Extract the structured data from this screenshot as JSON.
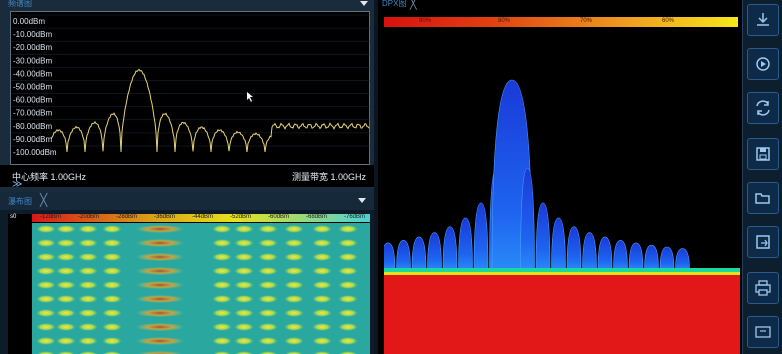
{
  "spectrum": {
    "title": "频谱图",
    "y_ticks": [
      "0.00dBm",
      "-10.00dBm",
      "-20.00dBm",
      "-30.00dBm",
      "-40.00dBm",
      "-50.00dBm",
      "-60.00dBm",
      "-70.00dBm",
      "-80.00dBm",
      "-90.00dBm",
      "-100.00dBm"
    ],
    "center_freq_label": "中心频率 1.00GHz",
    "span_label": "测量带宽 1.00GHz",
    "trace_color": "#e6d27a"
  },
  "sidebar_glyph": "≫",
  "waterfall": {
    "title": "瀑布图",
    "close_glyph": "╳",
    "axis_label": "s0",
    "scale_labels": [
      "-12dBm",
      "-20dBm",
      "-28dBm",
      "-36dBm",
      "-44dBm",
      "-52dBm",
      "-60dBm",
      "-68dBm",
      "-76dBm"
    ]
  },
  "dpx": {
    "title": "DPX图",
    "close_glyph": "╳",
    "scale_labels": [
      "90%",
      "80%",
      "70%",
      "60%"
    ]
  },
  "toolbar": {
    "buttons": [
      {
        "icon": "download-icon"
      },
      {
        "icon": "record-icon"
      },
      {
        "icon": "refresh-icon"
      },
      {
        "icon": "save-icon"
      },
      {
        "icon": "open-folder-icon"
      },
      {
        "icon": "export-icon"
      },
      {
        "icon": "print-icon"
      },
      {
        "icon": "screenshot-icon"
      }
    ]
  }
}
